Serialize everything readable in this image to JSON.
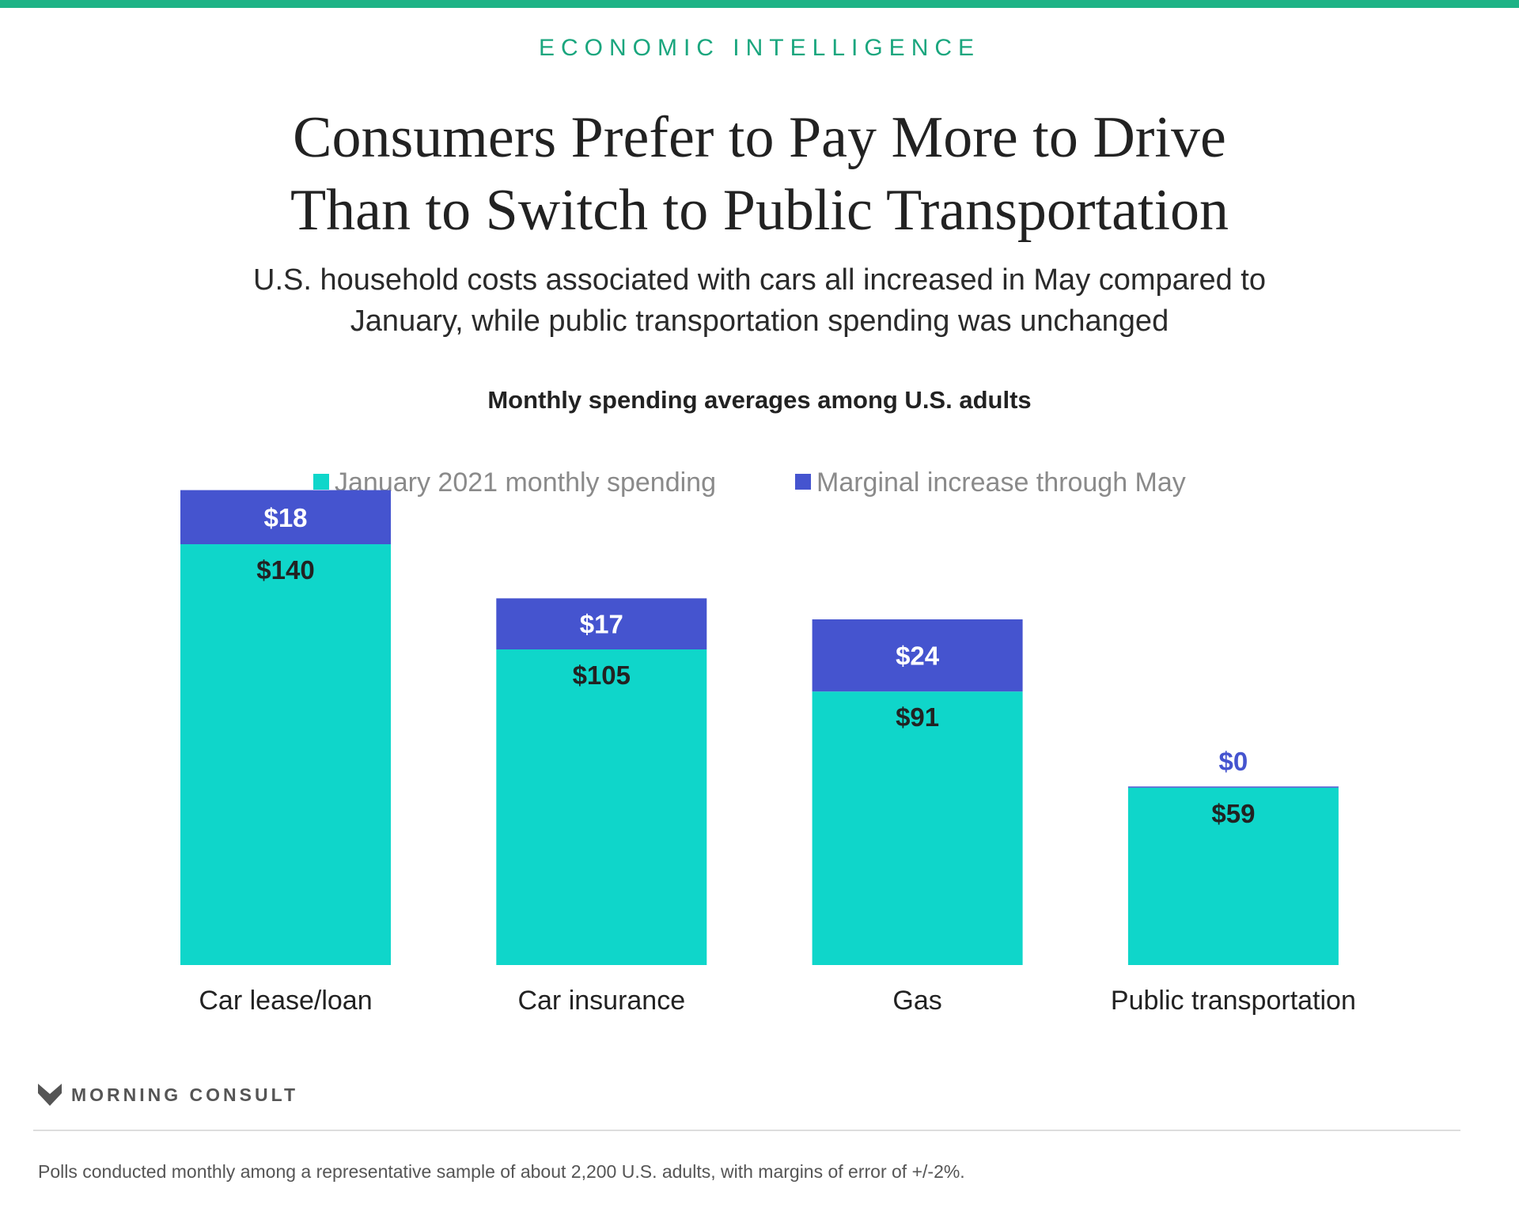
{
  "header": {
    "kicker": "ECONOMIC INTELLIGENCE",
    "title_lines": [
      "Consumers Prefer to Pay More to Drive",
      "Than to Switch to Public Transportation"
    ],
    "subtitle_lines": [
      "U.S. household costs associated with cars all increased in May compared to",
      "January, while public transportation spending was unchanged"
    ]
  },
  "colors": {
    "top_bar": "#1db386",
    "kicker": "#1aa67e",
    "january": "#0fd6ca",
    "increase": "#4554cf",
    "label_dark": "#222222",
    "label_light": "#ffffff"
  },
  "chart_data": {
    "type": "bar",
    "stacked": true,
    "title": "Monthly spending averages among U.S. adults",
    "categories": [
      "Car lease/loan",
      "Car insurance",
      "Gas",
      "Public transportation"
    ],
    "series": [
      {
        "name": "January 2021 monthly spending",
        "color": "#0fd6ca",
        "values": [
          140,
          105,
          91,
          59
        ],
        "labels": [
          "$140",
          "$105",
          "$91",
          "$59"
        ]
      },
      {
        "name": "Marginal increase through May",
        "color": "#4554cf",
        "values": [
          18,
          17,
          24,
          0
        ],
        "labels": [
          "$18",
          "$17",
          "$24",
          "$0"
        ]
      }
    ],
    "legend_position": "top-center",
    "grid": false,
    "y_axis_visible": false
  },
  "branding": {
    "logo_text": "MORNING CONSULT",
    "logo_icon": "morning-consult-chevron-icon"
  },
  "footer": {
    "note": "Polls conducted monthly among a representative sample of about 2,200 U.S. adults, with margins of error of +/-2%."
  }
}
